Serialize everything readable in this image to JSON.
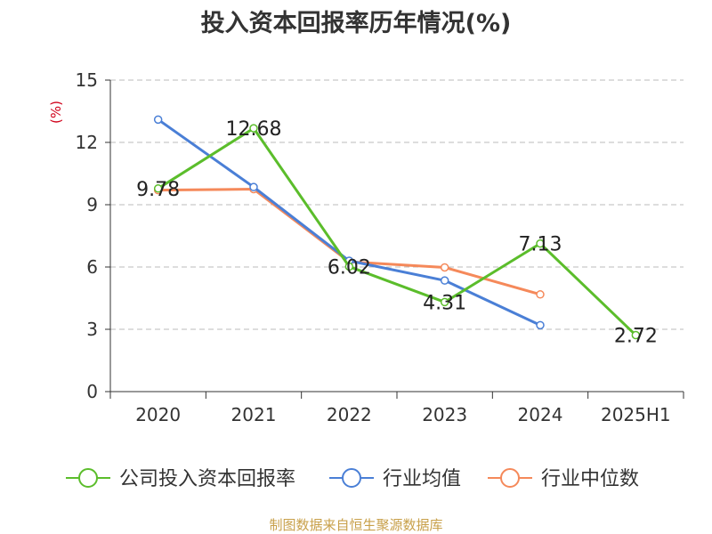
{
  "title": "投入资本回报率历年情况(%)",
  "source": "制图数据来自恒生聚源数据库",
  "colors": {
    "company": "#5bbd2b",
    "industry_avg": "#4a7fd6",
    "industry_median": "#f5895a",
    "unit_label": "#d0021b",
    "grid": "#bbbbbb",
    "axis": "#333333",
    "text": "#333333"
  },
  "chart_data": {
    "type": "line",
    "title": "投入资本回报率历年情况(%)",
    "ylabel": "(%)",
    "xlabel": "",
    "categories": [
      "2020",
      "2021",
      "2022",
      "2023",
      "2024",
      "2025H1"
    ],
    "ylim": [
      0,
      15
    ],
    "yticks": [
      0,
      3,
      6,
      9,
      12,
      15
    ],
    "grid": "horizontal dashed",
    "legend_position": "bottom",
    "series": [
      {
        "name": "公司投入资本回报率",
        "color_key": "company",
        "values": [
          9.78,
          12.68,
          6.02,
          4.31,
          7.13,
          2.72
        ],
        "labels": [
          "9.78",
          "12.68",
          "6.02",
          "4.31",
          "7.13",
          "2.72"
        ]
      },
      {
        "name": "行业均值",
        "color_key": "industry_avg",
        "values": [
          13.1,
          9.85,
          6.3,
          5.35,
          3.2,
          null
        ]
      },
      {
        "name": "行业中位数",
        "color_key": "industry_median",
        "values": [
          9.7,
          9.75,
          6.25,
          5.98,
          4.68,
          null
        ]
      }
    ]
  }
}
